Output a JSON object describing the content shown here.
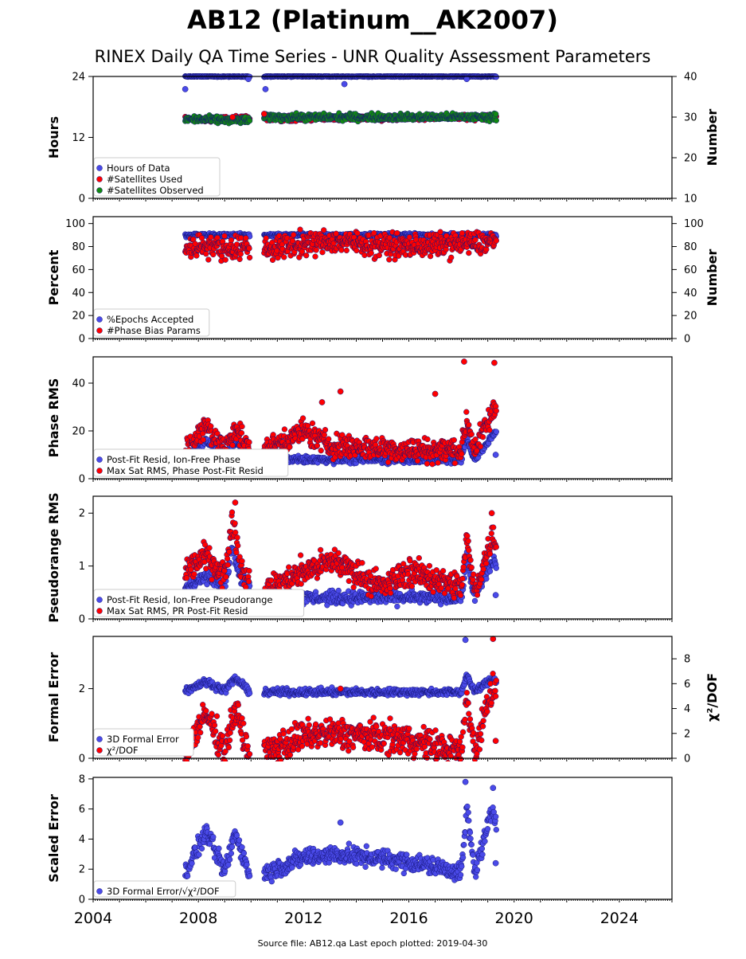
{
  "title": "AB12 (Platinum__AK2007)",
  "subtitle": "RINEX Daily QA Time Series - UNR Quality Assessment Parameters",
  "footer": "Source file: AB12.qa Last epoch plotted: 2019-04-30",
  "colors": {
    "blue": "#4a4ae8",
    "red": "#ff0000",
    "green": "#118811",
    "dark": "#141478"
  },
  "chart_data": {
    "type": "scatter",
    "x_axis": {
      "range": [
        2004.0,
        2026.0
      ],
      "ticks": [
        2004,
        2008,
        2012,
        2016,
        2020,
        2024
      ],
      "tick_labels": [
        "2004",
        "2008",
        "2012",
        "2016",
        "2020",
        "2024"
      ]
    },
    "coverage": [
      [
        2007.5,
        2009.95
      ],
      [
        2010.5,
        2019.33
      ]
    ],
    "panels": [
      {
        "id": "hours",
        "ylabel": "Hours",
        "ylim": [
          0,
          24
        ],
        "yticks": [
          0,
          12,
          24
        ],
        "yticklabels": [
          "0",
          "12",
          "24"
        ],
        "ylabel_right": "Number",
        "ylim_right": [
          10,
          40
        ],
        "yticks_right": [
          10,
          20,
          30,
          40
        ],
        "yticklabels_right": [
          "10",
          "20",
          "30",
          "40"
        ],
        "legend": [
          "Hours of Data",
          "#Satellites Used",
          "#Satellites Observed"
        ],
        "series": [
          {
            "name": "Hours of Data",
            "color": "blue",
            "axis": "left",
            "profile": [
              [
                2007.5,
                24.0
              ],
              [
                2019.33,
                24.0
              ]
            ],
            "jitter": 0.1
          },
          {
            "name": "#Satellites Used",
            "color": "red",
            "axis": "right",
            "profile": [
              [
                2007.5,
                29.5
              ],
              [
                2019.33,
                30.0
              ]
            ],
            "jitter": 0.6
          },
          {
            "name": "#Satellites Observed",
            "color": "green",
            "axis": "right",
            "profile": [
              [
                2007.5,
                29.5
              ],
              [
                2009.9,
                29.2
              ],
              [
                2010.5,
                30.0
              ],
              [
                2019.33,
                30.0
              ]
            ],
            "jitter": 0.8
          }
        ],
        "outliers": [
          {
            "series": "Hours of Data",
            "x": 2007.5,
            "y": 21.5
          },
          {
            "series": "Hours of Data",
            "x": 2010.55,
            "y": 21.5
          },
          {
            "series": "Hours of Data",
            "x": 2013.55,
            "y": 22.5
          },
          {
            "series": "Hours of Data",
            "x": 2018.2,
            "y": 23.5
          },
          {
            "series": "Hours of Data",
            "x": 2009.9,
            "y": 23.5
          },
          {
            "series": "#Satellites Used",
            "x": 2009.3,
            "y": 30.0
          },
          {
            "series": "#Satellites Used",
            "x": 2010.5,
            "y": 30.8
          }
        ]
      },
      {
        "id": "percent",
        "ylabel": "Percent",
        "ylim": [
          0,
          106
        ],
        "yticks": [
          0,
          20,
          40,
          60,
          80,
          100
        ],
        "yticklabels": [
          "0",
          "20",
          "40",
          "60",
          "80",
          "100"
        ],
        "ylabel_right": "Number",
        "ylim_right": [
          0,
          106
        ],
        "yticks_right": [
          0,
          20,
          40,
          60,
          80,
          100
        ],
        "yticklabels_right": [
          "0",
          "20",
          "40",
          "60",
          "80",
          "100"
        ],
        "legend": [
          "%Epochs Accepted",
          "#Phase Bias Params"
        ],
        "series": [
          {
            "name": "%Epochs Accepted",
            "color": "blue",
            "axis": "left",
            "profile": [
              [
                2007.5,
                90
              ],
              [
                2019.33,
                90
              ]
            ],
            "jitter": 1.5
          },
          {
            "name": "#Phase Bias Params",
            "color": "red",
            "axis": "right",
            "profile": [
              [
                2007.5,
                78
              ],
              [
                2008.3,
                82
              ],
              [
                2009.0,
                78
              ],
              [
                2009.9,
                80
              ],
              [
                2010.5,
                78
              ],
              [
                2013.0,
                85
              ],
              [
                2016.0,
                80
              ],
              [
                2019.33,
                84
              ]
            ],
            "jitter": 10
          }
        ],
        "outliers": []
      },
      {
        "id": "phase",
        "ylabel": "Phase RMS",
        "ylim": [
          0,
          51
        ],
        "yticks": [
          0,
          20,
          40
        ],
        "yticklabels": [
          "0",
          "20",
          "40"
        ],
        "legend": [
          "Post-Fit Resid, Ion-Free Phase",
          "Max Sat RMS, Phase Post-Fit Resid"
        ],
        "series": [
          {
            "name": "Post-Fit Resid, Ion-Free Phase",
            "color": "blue",
            "axis": "left",
            "profile": [
              [
                2007.5,
                8
              ],
              [
                2008.3,
                16
              ],
              [
                2009.0,
                8
              ],
              [
                2009.4,
                16
              ],
              [
                2009.9,
                8
              ],
              [
                2010.5,
                8
              ],
              [
                2018.0,
                8
              ],
              [
                2018.2,
                17
              ],
              [
                2018.5,
                8
              ],
              [
                2019.2,
                18
              ],
              [
                2019.33,
                20
              ]
            ],
            "jitter": 1.5
          },
          {
            "name": "Max Sat RMS, Phase Post-Fit Resid",
            "color": "red",
            "axis": "left",
            "profile": [
              [
                2007.5,
                12
              ],
              [
                2008.3,
                22
              ],
              [
                2009.0,
                12
              ],
              [
                2009.4,
                22
              ],
              [
                2009.9,
                12
              ],
              [
                2010.5,
                12
              ],
              [
                2012.0,
                20
              ],
              [
                2013.0,
                14
              ],
              [
                2016.0,
                12
              ],
              [
                2018.0,
                12
              ],
              [
                2018.2,
                25
              ],
              [
                2018.5,
                12
              ],
              [
                2019.2,
                28
              ],
              [
                2019.33,
                30
              ]
            ],
            "jitter": 5
          }
        ],
        "outliers": [
          {
            "series": "Max Sat RMS, Phase Post-Fit Resid",
            "x": 2018.1,
            "y": 49
          },
          {
            "series": "Max Sat RMS, Phase Post-Fit Resid",
            "x": 2019.25,
            "y": 48.5
          },
          {
            "series": "Max Sat RMS, Phase Post-Fit Resid",
            "x": 2013.4,
            "y": 36.5
          },
          {
            "series": "Max Sat RMS, Phase Post-Fit Resid",
            "x": 2017.0,
            "y": 35.5
          },
          {
            "series": "Max Sat RMS, Phase Post-Fit Resid",
            "x": 2012.7,
            "y": 32
          },
          {
            "series": "Post-Fit Resid, Ion-Free Phase",
            "x": 2019.3,
            "y": 10
          }
        ]
      },
      {
        "id": "pseudorange",
        "ylabel": "Pseudorange RMS",
        "ylim": [
          0,
          2.32
        ],
        "yticks": [
          0,
          1,
          2
        ],
        "yticklabels": [
          "0",
          "1",
          "2"
        ],
        "legend": [
          "Post-Fit Resid, Ion-Free Pseudorange",
          "Max Sat RMS, PR Post-Fit Resid"
        ],
        "series": [
          {
            "name": "Post-Fit Resid, Ion-Free Pseudorange",
            "color": "blue",
            "axis": "left",
            "profile": [
              [
                2007.5,
                0.6
              ],
              [
                2008.3,
                0.8
              ],
              [
                2009.0,
                0.6
              ],
              [
                2009.3,
                1.4
              ],
              [
                2009.6,
                0.8
              ],
              [
                2009.9,
                0.6
              ],
              [
                2010.5,
                0.4
              ],
              [
                2018.0,
                0.4
              ],
              [
                2018.2,
                1.2
              ],
              [
                2018.5,
                0.4
              ],
              [
                2019.2,
                1.1
              ],
              [
                2019.33,
                1.0
              ]
            ],
            "jitter": 0.12
          },
          {
            "name": "Max Sat RMS, PR Post-Fit Resid",
            "color": "red",
            "axis": "left",
            "profile": [
              [
                2007.5,
                0.9
              ],
              [
                2008.3,
                1.2
              ],
              [
                2009.0,
                0.8
              ],
              [
                2009.3,
                1.9
              ],
              [
                2009.6,
                1.0
              ],
              [
                2009.9,
                0.7
              ],
              [
                2010.5,
                0.5
              ],
              [
                2012.0,
                0.9
              ],
              [
                2013.2,
                1.1
              ],
              [
                2015.0,
                0.6
              ],
              [
                2016.0,
                0.9
              ],
              [
                2018.0,
                0.6
              ],
              [
                2018.2,
                1.5
              ],
              [
                2018.5,
                0.5
              ],
              [
                2019.2,
                1.6
              ],
              [
                2019.33,
                1.4
              ]
            ],
            "jitter": 0.25
          }
        ],
        "outliers": [
          {
            "series": "Max Sat RMS, PR Post-Fit Resid",
            "x": 2009.4,
            "y": 2.2
          },
          {
            "series": "Max Sat RMS, PR Post-Fit Resid",
            "x": 2019.15,
            "y": 2.0
          },
          {
            "series": "Post-Fit Resid, Ion-Free Pseudorange",
            "x": 2019.3,
            "y": 0.45
          }
        ]
      },
      {
        "id": "formal",
        "ylabel": "Formal Error",
        "ylim": [
          0,
          3.5
        ],
        "yticks": [
          0,
          2
        ],
        "yticklabels": [
          "0",
          "2"
        ],
        "ylabel_right": "χ²/DOF",
        "ylim_right": [
          0,
          9.8
        ],
        "yticks_right": [
          0,
          2,
          4,
          6,
          8
        ],
        "yticklabels_right": [
          "0",
          "2",
          "4",
          "6",
          "8"
        ],
        "legend": [
          "3D Formal Error",
          "χ²/DOF"
        ],
        "series": [
          {
            "name": "3D Formal Error",
            "color": "blue",
            "axis": "left",
            "profile": [
              [
                2007.5,
                1.95
              ],
              [
                2008.3,
                2.2
              ],
              [
                2009.0,
                1.95
              ],
              [
                2009.4,
                2.3
              ],
              [
                2009.9,
                1.95
              ],
              [
                2010.5,
                1.9
              ],
              [
                2018.0,
                1.9
              ],
              [
                2018.2,
                2.4
              ],
              [
                2018.5,
                1.9
              ],
              [
                2019.2,
                2.3
              ],
              [
                2019.33,
                2.2
              ]
            ],
            "jitter": 0.1
          },
          {
            "name": "χ²/DOF",
            "color": "red",
            "axis": "right",
            "profile": [
              [
                2007.5,
                0.5
              ],
              [
                2008.3,
                3.5
              ],
              [
                2009.0,
                0.6
              ],
              [
                2009.4,
                4.0
              ],
              [
                2009.9,
                0.4
              ],
              [
                2010.5,
                0.4
              ],
              [
                2012.0,
                1.8
              ],
              [
                2013.2,
                2.0
              ],
              [
                2016.0,
                1.5
              ],
              [
                2018.0,
                0.5
              ],
              [
                2018.2,
                5.0
              ],
              [
                2018.5,
                0.5
              ],
              [
                2019.2,
                6.0
              ],
              [
                2019.33,
                5.0
              ]
            ],
            "jitter": 1.2
          }
        ],
        "outliers": [
          {
            "series": "3D Formal Error",
            "x": 2018.15,
            "y": 3.4
          },
          {
            "series": "χ²/DOF",
            "x": 2019.2,
            "y": 9.6
          },
          {
            "series": "χ²/DOF",
            "x": 2013.4,
            "y": 5.6
          },
          {
            "series": "χ²/DOF",
            "x": 2019.3,
            "y": 1.4
          }
        ]
      },
      {
        "id": "scaled",
        "ylabel": "Scaled Error",
        "ylim": [
          0,
          8.1
        ],
        "yticks": [
          0,
          2,
          4,
          6,
          8
        ],
        "yticklabels": [
          "0",
          "2",
          "4",
          "6",
          "8"
        ],
        "legend": [
          "3D Formal Error/√χ²/DOF"
        ],
        "series": [
          {
            "name": "3D Formal Error/√χ²/DOF",
            "color": "blue",
            "axis": "left",
            "profile": [
              [
                2007.5,
                1.8
              ],
              [
                2008.3,
                4.5
              ],
              [
                2009.0,
                1.8
              ],
              [
                2009.4,
                4.5
              ],
              [
                2009.9,
                1.8
              ],
              [
                2010.5,
                1.7
              ],
              [
                2012.0,
                2.8
              ],
              [
                2013.2,
                3.0
              ],
              [
                2016.0,
                2.5
              ],
              [
                2018.0,
                1.8
              ],
              [
                2018.2,
                6.0
              ],
              [
                2018.5,
                1.8
              ],
              [
                2019.2,
                6.0
              ],
              [
                2019.33,
                5.0
              ]
            ],
            "jitter": 0.6
          }
        ],
        "outliers": [
          {
            "series": "3D Formal Error/√χ²/DOF",
            "x": 2018.15,
            "y": 7.8
          },
          {
            "series": "3D Formal Error/√χ²/DOF",
            "x": 2019.2,
            "y": 7.4
          },
          {
            "series": "3D Formal Error/√χ²/DOF",
            "x": 2013.4,
            "y": 5.1
          },
          {
            "series": "3D Formal Error/√χ²/DOF",
            "x": 2019.3,
            "y": 2.4
          }
        ]
      }
    ]
  }
}
